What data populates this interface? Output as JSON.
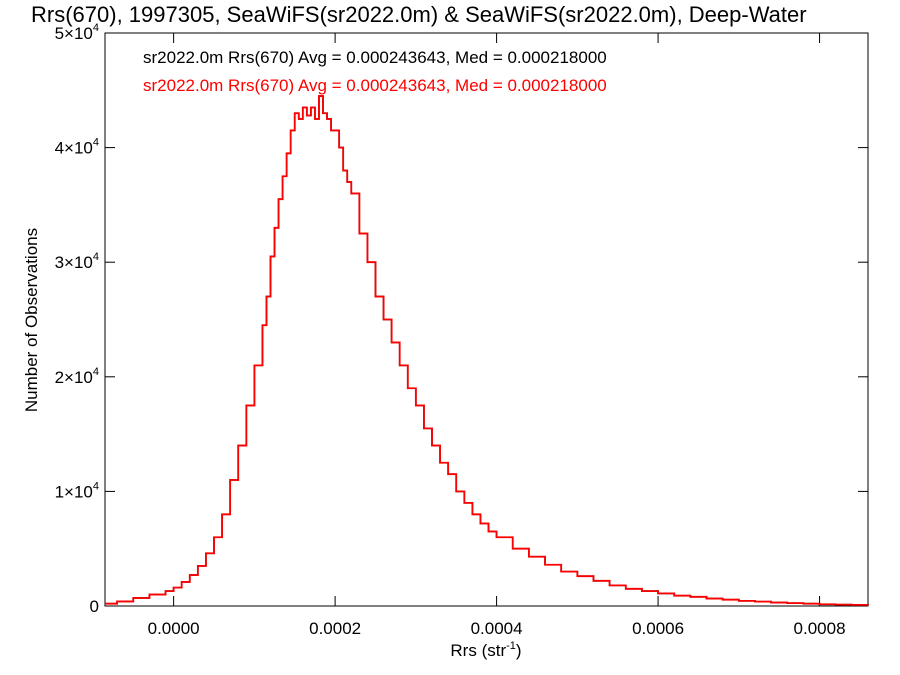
{
  "chart_data": {
    "type": "line",
    "step": true,
    "title": "Rrs(670), 1997305, SeaWiFS(sr2022.0m) & SeaWiFS(sr2022.0m), Deep-Water",
    "xlabel_base": "Rrs (str",
    "xlabel_sup": "-1",
    "xlabel_close": ")",
    "ylabel": "Number of Observations",
    "xlim": [
      -8.5e-05,
      0.00086
    ],
    "ylim": [
      0,
      50000
    ],
    "xticks": [
      {
        "value": 0.0,
        "label": "0.0000"
      },
      {
        "value": 0.0002,
        "label": "0.0002"
      },
      {
        "value": 0.0004,
        "label": "0.0004"
      },
      {
        "value": 0.0006,
        "label": "0.0006"
      },
      {
        "value": 0.0008,
        "label": "0.0008"
      }
    ],
    "yticks": [
      {
        "value": 0,
        "base": "0",
        "exp": ""
      },
      {
        "value": 10000,
        "base": "1×10",
        "exp": "4"
      },
      {
        "value": 20000,
        "base": "2×10",
        "exp": "4"
      },
      {
        "value": 30000,
        "base": "3×10",
        "exp": "4"
      },
      {
        "value": 40000,
        "base": "4×10",
        "exp": "4"
      },
      {
        "value": 50000,
        "base": "5×10",
        "exp": "4"
      }
    ],
    "grid": false,
    "legend_position": "top-left",
    "series": [
      {
        "name": "sr2022.0m Rrs(670) Avg = 0.000243643, Med = 0.000218000",
        "color": "#000000",
        "x": [
          -8.5e-05,
          -7e-05,
          -5e-05,
          -3e-05,
          -1e-05,
          0.0,
          1e-05,
          2e-05,
          3e-05,
          4e-05,
          5e-05,
          6e-05,
          7e-05,
          8e-05,
          9e-05,
          0.0001,
          0.00011,
          0.000115,
          0.00012,
          0.000125,
          0.00013,
          0.000135,
          0.00014,
          0.000145,
          0.00015,
          0.000155,
          0.00016,
          0.000165,
          0.00017,
          0.000175,
          0.00018,
          0.000185,
          0.00019,
          0.000195,
          0.0002,
          0.000205,
          0.00021,
          0.000215,
          0.00022,
          0.00023,
          0.00024,
          0.00025,
          0.00026,
          0.00027,
          0.00028,
          0.00029,
          0.0003,
          0.00031,
          0.00032,
          0.00033,
          0.00034,
          0.00035,
          0.00036,
          0.00037,
          0.00038,
          0.00039,
          0.0004,
          0.00042,
          0.00044,
          0.00046,
          0.00048,
          0.0005,
          0.00052,
          0.00054,
          0.00056,
          0.00058,
          0.0006,
          0.00062,
          0.00064,
          0.00066,
          0.00068,
          0.0007,
          0.00072,
          0.00074,
          0.00076,
          0.00078,
          0.0008,
          0.00082,
          0.00084,
          0.00086
        ],
        "y": [
          200,
          400,
          700,
          1000,
          1300,
          1600,
          2100,
          2700,
          3500,
          4600,
          6000,
          8000,
          11000,
          14000,
          17500,
          21000,
          24500,
          27000,
          30500,
          33000,
          35500,
          37500,
          39500,
          41500,
          43000,
          42500,
          43500,
          42800,
          43500,
          42500,
          44500,
          43000,
          42500,
          41500,
          41500,
          40000,
          38000,
          37000,
          36000,
          32500,
          30000,
          27000,
          25000,
          23000,
          21000,
          19000,
          17500,
          15500,
          14000,
          12500,
          11500,
          10000,
          9000,
          8000,
          7200,
          6500,
          6000,
          5000,
          4300,
          3600,
          3000,
          2600,
          2200,
          1800,
          1500,
          1300,
          1100,
          900,
          800,
          650,
          550,
          450,
          380,
          300,
          250,
          200,
          150,
          120,
          100,
          80
        ]
      },
      {
        "name": "sr2022.0m Rrs(670) Avg = 0.000243643, Med = 0.000218000",
        "color": "#ff0000",
        "x": [
          -8.5e-05,
          -7e-05,
          -5e-05,
          -3e-05,
          -1e-05,
          0.0,
          1e-05,
          2e-05,
          3e-05,
          4e-05,
          5e-05,
          6e-05,
          7e-05,
          8e-05,
          9e-05,
          0.0001,
          0.00011,
          0.000115,
          0.00012,
          0.000125,
          0.00013,
          0.000135,
          0.00014,
          0.000145,
          0.00015,
          0.000155,
          0.00016,
          0.000165,
          0.00017,
          0.000175,
          0.00018,
          0.000185,
          0.00019,
          0.000195,
          0.0002,
          0.000205,
          0.00021,
          0.000215,
          0.00022,
          0.00023,
          0.00024,
          0.00025,
          0.00026,
          0.00027,
          0.00028,
          0.00029,
          0.0003,
          0.00031,
          0.00032,
          0.00033,
          0.00034,
          0.00035,
          0.00036,
          0.00037,
          0.00038,
          0.00039,
          0.0004,
          0.00042,
          0.00044,
          0.00046,
          0.00048,
          0.0005,
          0.00052,
          0.00054,
          0.00056,
          0.00058,
          0.0006,
          0.00062,
          0.00064,
          0.00066,
          0.00068,
          0.0007,
          0.00072,
          0.00074,
          0.00076,
          0.00078,
          0.0008,
          0.00082,
          0.00084,
          0.00086
        ],
        "y": [
          200,
          400,
          700,
          1000,
          1300,
          1600,
          2100,
          2700,
          3500,
          4600,
          6000,
          8000,
          11000,
          14000,
          17500,
          21000,
          24500,
          27000,
          30500,
          33000,
          35500,
          37500,
          39500,
          41500,
          43000,
          42500,
          43500,
          42800,
          43500,
          42500,
          44500,
          43000,
          42500,
          41500,
          41500,
          40000,
          38000,
          37000,
          36000,
          32500,
          30000,
          27000,
          25000,
          23000,
          21000,
          19000,
          17500,
          15500,
          14000,
          12500,
          11500,
          10000,
          9000,
          8000,
          7200,
          6500,
          6000,
          5000,
          4300,
          3600,
          3000,
          2600,
          2200,
          1800,
          1500,
          1300,
          1100,
          900,
          800,
          650,
          550,
          450,
          380,
          300,
          250,
          200,
          150,
          120,
          100,
          80
        ]
      }
    ]
  }
}
